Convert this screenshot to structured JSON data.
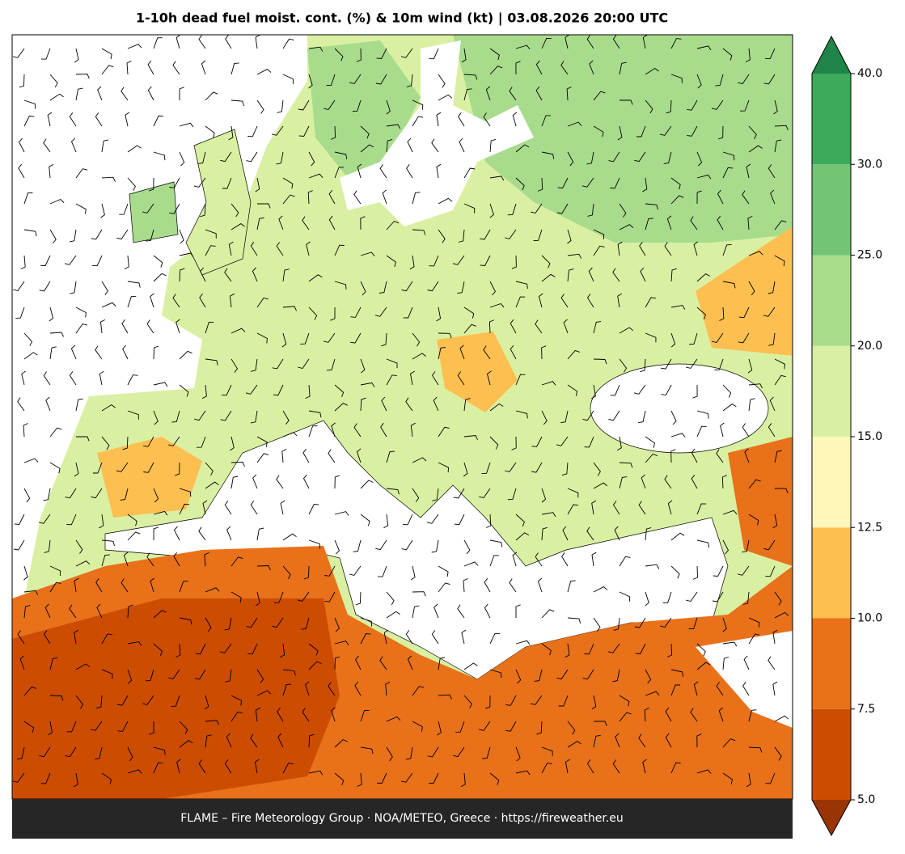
{
  "title": "1-10h dead fuel moist. cont. (%) & 10m wind (kt)  |  03.08.2026 20:00 UTC",
  "footer": "FLAME – Fire Meteorology Group · NOA/METEO, Greece · https://fireweather.eu",
  "colorbar": {
    "ticks": [
      {
        "value": 5,
        "label": "5.0"
      },
      {
        "value": 7.5,
        "label": "7.5"
      },
      {
        "value": 10,
        "label": "10.0"
      },
      {
        "value": 12.5,
        "label": "12.5"
      },
      {
        "value": 15,
        "label": "15.0"
      },
      {
        "value": 20,
        "label": "20.0"
      },
      {
        "value": 25,
        "label": "25.0"
      },
      {
        "value": 30,
        "label": "30.0"
      },
      {
        "value": 40,
        "label": "40.0"
      }
    ],
    "colors": [
      "#cc4c02",
      "#e8711a",
      "#fdbf4f",
      "#fff7bc",
      "#d9f0a3",
      "#a8dc8c",
      "#74c476",
      "#3caa5a"
    ],
    "under_color": "#993404",
    "over_color": "#1e8449"
  }
}
